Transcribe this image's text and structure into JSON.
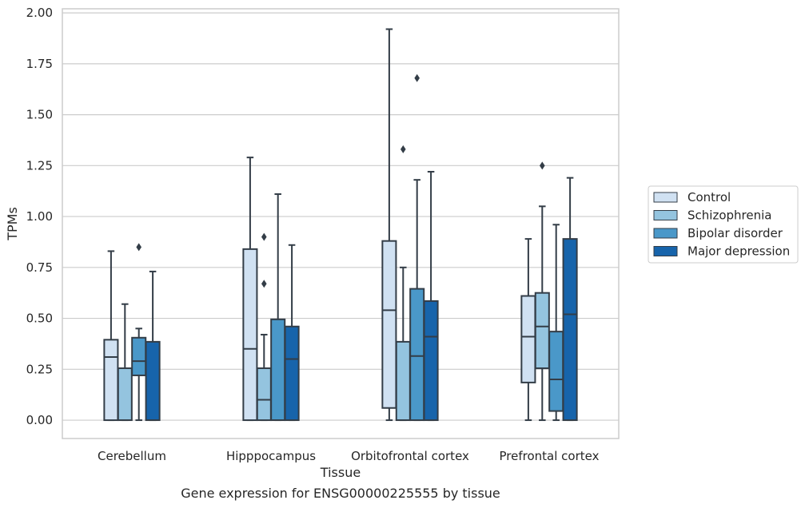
{
  "chart_data": {
    "type": "box",
    "caption": "Gene expression for ENSG00000225555 by tissue",
    "xlabel": "Tissue",
    "ylabel": "TPMs",
    "ylim": [
      -0.09,
      2.02
    ],
    "yticks": [
      "0.00",
      "0.25",
      "0.50",
      "0.75",
      "1.00",
      "1.25",
      "1.50",
      "1.75",
      "2.00"
    ],
    "ytick_values": [
      0,
      0.25,
      0.5,
      0.75,
      1.0,
      1.25,
      1.5,
      1.75,
      2.0
    ],
    "categories": [
      "Cerebellum",
      "Hipppocampus",
      "Orbitofrontal cortex",
      "Prefrontal cortex"
    ],
    "grid": "horizontal",
    "legend_position": "right",
    "series": [
      {
        "name": "Control",
        "color": "#d0e1f2",
        "boxes": [
          {
            "whislo": 0,
            "q1": 0,
            "med": 0.31,
            "q3": 0.395,
            "whishi": 0.83,
            "fliers": []
          },
          {
            "whislo": 0,
            "q1": 0,
            "med": 0.35,
            "q3": 0.84,
            "whishi": 1.29,
            "fliers": []
          },
          {
            "whislo": 0,
            "q1": 0.06,
            "med": 0.54,
            "q3": 0.88,
            "whishi": 1.92,
            "fliers": []
          },
          {
            "whislo": 0,
            "q1": 0.185,
            "med": 0.41,
            "q3": 0.61,
            "whishi": 0.89,
            "fliers": []
          }
        ]
      },
      {
        "name": "Schizophrenia",
        "color": "#94c4df",
        "boxes": [
          {
            "whislo": 0,
            "q1": 0,
            "med": 0,
            "q3": 0.255,
            "whishi": 0.57,
            "fliers": []
          },
          {
            "whislo": 0,
            "q1": 0,
            "med": 0.1,
            "q3": 0.255,
            "whishi": 0.42,
            "fliers": [
              0.67,
              0.9
            ]
          },
          {
            "whislo": 0,
            "q1": 0,
            "med": 0,
            "q3": 0.385,
            "whishi": 0.75,
            "fliers": [
              1.33
            ]
          },
          {
            "whislo": 0,
            "q1": 0.255,
            "med": 0.46,
            "q3": 0.625,
            "whishi": 1.05,
            "fliers": [
              1.25
            ]
          }
        ]
      },
      {
        "name": "Bipolar disorder",
        "color": "#4a98c9",
        "boxes": [
          {
            "whislo": 0,
            "q1": 0.22,
            "med": 0.29,
            "q3": 0.405,
            "whishi": 0.45,
            "fliers": [
              0.85
            ]
          },
          {
            "whislo": 0,
            "q1": 0,
            "med": 0,
            "q3": 0.495,
            "whishi": 1.11,
            "fliers": []
          },
          {
            "whislo": 0,
            "q1": 0,
            "med": 0.315,
            "q3": 0.645,
            "whishi": 1.18,
            "fliers": [
              1.68
            ]
          },
          {
            "whislo": 0,
            "q1": 0.045,
            "med": 0.2,
            "q3": 0.435,
            "whishi": 0.96,
            "fliers": []
          }
        ]
      },
      {
        "name": "Major depression",
        "color": "#1764ab",
        "boxes": [
          {
            "whislo": 0,
            "q1": 0,
            "med": 0,
            "q3": 0.385,
            "whishi": 0.73,
            "fliers": []
          },
          {
            "whislo": 0,
            "q1": 0,
            "med": 0.3,
            "q3": 0.46,
            "whishi": 0.86,
            "fliers": []
          },
          {
            "whislo": 0,
            "q1": 0,
            "med": 0.41,
            "q3": 0.585,
            "whishi": 1.22,
            "fliers": []
          },
          {
            "whislo": 0,
            "q1": 0,
            "med": 0.52,
            "q3": 0.89,
            "whishi": 1.19,
            "fliers": []
          }
        ]
      }
    ]
  }
}
